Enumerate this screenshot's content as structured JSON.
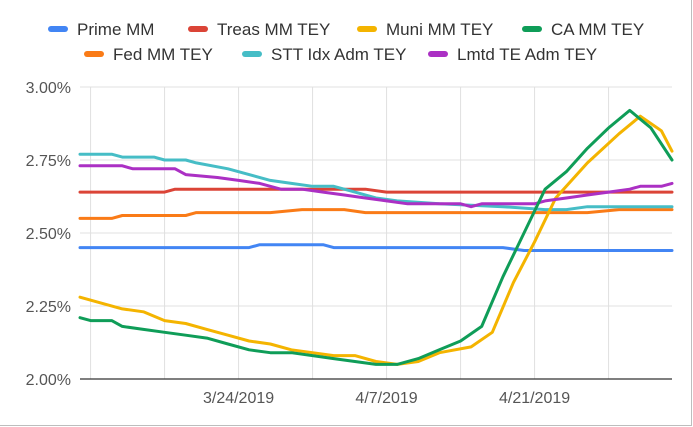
{
  "chart_data": {
    "type": "line",
    "title": "",
    "xlabel": "",
    "ylabel": "",
    "ylim": [
      2.0,
      3.0
    ],
    "y_ticks": [
      "3.00%",
      "2.75%",
      "2.50%",
      "2.25%",
      "2.00%"
    ],
    "y_tick_values": [
      3.0,
      2.75,
      2.5,
      2.25,
      2.0
    ],
    "x_tick_labels": [
      "3/24/2019",
      "4/7/2019",
      "4/21/2019"
    ],
    "x_tick_values": [
      15,
      29,
      43
    ],
    "xlim": [
      0,
      56
    ],
    "grid": true,
    "legend_position": "top",
    "series": [
      {
        "name": "Prime MM",
        "color": "#4285f4",
        "points": [
          [
            0,
            2.45
          ],
          [
            16,
            2.45
          ],
          [
            17,
            2.46
          ],
          [
            23,
            2.46
          ],
          [
            24,
            2.45
          ],
          [
            40,
            2.45
          ],
          [
            42,
            2.44
          ],
          [
            56,
            2.44
          ]
        ]
      },
      {
        "name": "Fed MM TEY",
        "color": "#fa7b17",
        "points": [
          [
            0,
            2.55
          ],
          [
            3,
            2.55
          ],
          [
            4,
            2.56
          ],
          [
            10,
            2.56
          ],
          [
            11,
            2.57
          ],
          [
            18,
            2.57
          ],
          [
            21,
            2.58
          ],
          [
            25,
            2.58
          ],
          [
            27,
            2.57
          ],
          [
            44,
            2.57
          ],
          [
            48,
            2.57
          ],
          [
            51,
            2.58
          ],
          [
            56,
            2.58
          ]
        ]
      },
      {
        "name": "Treas MM TEY",
        "color": "#db4437",
        "points": [
          [
            0,
            2.64
          ],
          [
            8,
            2.64
          ],
          [
            9,
            2.65
          ],
          [
            25,
            2.65
          ],
          [
            27,
            2.65
          ],
          [
            29,
            2.64
          ],
          [
            56,
            2.64
          ]
        ]
      },
      {
        "name": "STT Idx Adm TEY",
        "color": "#46bdc6",
        "points": [
          [
            0,
            2.77
          ],
          [
            3,
            2.77
          ],
          [
            4,
            2.76
          ],
          [
            7,
            2.76
          ],
          [
            8,
            2.75
          ],
          [
            10,
            2.75
          ],
          [
            11,
            2.74
          ],
          [
            14,
            2.72
          ],
          [
            16,
            2.7
          ],
          [
            18,
            2.68
          ],
          [
            20,
            2.67
          ],
          [
            22,
            2.66
          ],
          [
            24,
            2.66
          ],
          [
            26,
            2.64
          ],
          [
            28,
            2.62
          ],
          [
            30,
            2.61
          ],
          [
            34,
            2.6
          ],
          [
            40,
            2.59
          ],
          [
            44,
            2.58
          ],
          [
            46,
            2.58
          ],
          [
            48,
            2.59
          ],
          [
            56,
            2.59
          ]
        ]
      },
      {
        "name": "Muni MM TEY",
        "color": "#f4b400",
        "points": [
          [
            0,
            2.28
          ],
          [
            2,
            2.26
          ],
          [
            4,
            2.24
          ],
          [
            6,
            2.23
          ],
          [
            8,
            2.2
          ],
          [
            10,
            2.19
          ],
          [
            12,
            2.17
          ],
          [
            14,
            2.15
          ],
          [
            16,
            2.13
          ],
          [
            18,
            2.12
          ],
          [
            20,
            2.1
          ],
          [
            22,
            2.09
          ],
          [
            24,
            2.08
          ],
          [
            26,
            2.08
          ],
          [
            28,
            2.06
          ],
          [
            30,
            2.05
          ],
          [
            32,
            2.06
          ],
          [
            34,
            2.09
          ],
          [
            37,
            2.11
          ],
          [
            39,
            2.16
          ],
          [
            41,
            2.33
          ],
          [
            43,
            2.47
          ],
          [
            45,
            2.62
          ],
          [
            48,
            2.74
          ],
          [
            51,
            2.84
          ],
          [
            53,
            2.9
          ],
          [
            55,
            2.85
          ],
          [
            56,
            2.78
          ]
        ]
      },
      {
        "name": "Lmtd TE Adm TEY",
        "color": "#ab30c4",
        "points": [
          [
            0,
            2.73
          ],
          [
            4,
            2.73
          ],
          [
            5,
            2.72
          ],
          [
            9,
            2.72
          ],
          [
            10,
            2.7
          ],
          [
            13,
            2.69
          ],
          [
            15,
            2.68
          ],
          [
            17,
            2.67
          ],
          [
            19,
            2.65
          ],
          [
            21,
            2.65
          ],
          [
            23,
            2.64
          ],
          [
            25,
            2.63
          ],
          [
            27,
            2.62
          ],
          [
            29,
            2.61
          ],
          [
            31,
            2.6
          ],
          [
            36,
            2.6
          ],
          [
            37,
            2.59
          ],
          [
            38,
            2.6
          ],
          [
            43,
            2.6
          ],
          [
            44,
            2.61
          ],
          [
            46,
            2.62
          ],
          [
            48,
            2.63
          ],
          [
            50,
            2.64
          ],
          [
            52,
            2.65
          ],
          [
            53,
            2.66
          ],
          [
            55,
            2.66
          ],
          [
            56,
            2.67
          ]
        ]
      },
      {
        "name": "CA MM TEY",
        "color": "#0f9d58",
        "points": [
          [
            0,
            2.21
          ],
          [
            1,
            2.2
          ],
          [
            3,
            2.2
          ],
          [
            4,
            2.18
          ],
          [
            6,
            2.17
          ],
          [
            8,
            2.16
          ],
          [
            10,
            2.15
          ],
          [
            12,
            2.14
          ],
          [
            14,
            2.12
          ],
          [
            16,
            2.1
          ],
          [
            18,
            2.09
          ],
          [
            20,
            2.09
          ],
          [
            22,
            2.08
          ],
          [
            24,
            2.07
          ],
          [
            26,
            2.06
          ],
          [
            28,
            2.05
          ],
          [
            30,
            2.05
          ],
          [
            32,
            2.07
          ],
          [
            34,
            2.1
          ],
          [
            36,
            2.13
          ],
          [
            38,
            2.18
          ],
          [
            40,
            2.35
          ],
          [
            42,
            2.5
          ],
          [
            44,
            2.65
          ],
          [
            46,
            2.71
          ],
          [
            48,
            2.79
          ],
          [
            50,
            2.86
          ],
          [
            52,
            2.92
          ],
          [
            54,
            2.86
          ],
          [
            56,
            2.75
          ]
        ]
      }
    ]
  }
}
